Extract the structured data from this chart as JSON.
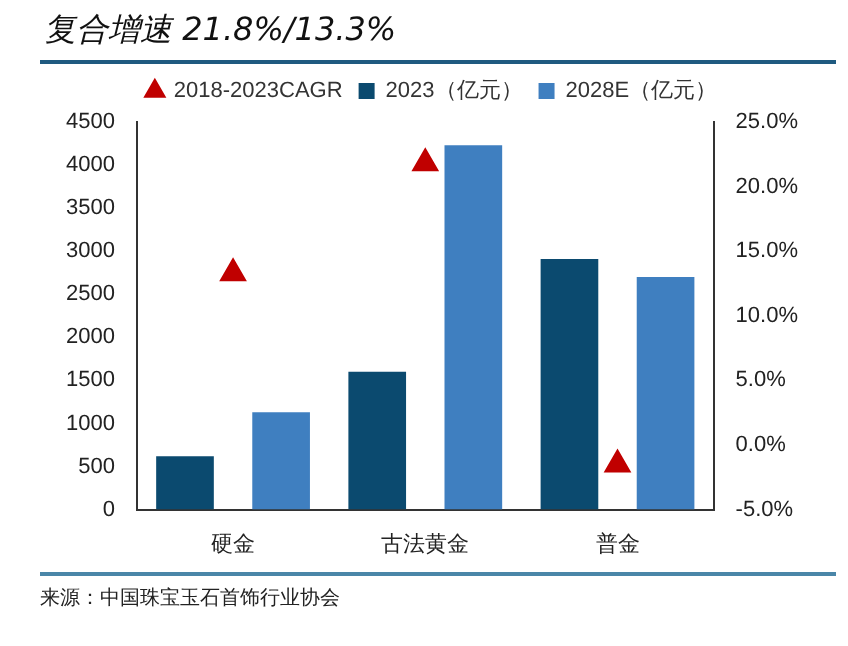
{
  "chart_data": {
    "type": "bar",
    "title": "复合增速 21.8%/13.3%",
    "categories": [
      "硬金",
      "古法黄金",
      "普金"
    ],
    "series": [
      {
        "name": "2023（亿元）",
        "color": "#0b4a6f",
        "values": [
          620,
          1600,
          2910
        ]
      },
      {
        "name": "2028E（亿元）",
        "color": "#3f7fc0",
        "values": [
          1130,
          4230,
          2700
        ]
      },
      {
        "name": "2018-2023CAGR",
        "type": "scatter",
        "marker": "triangle",
        "axis": "y2",
        "color": "#c00000",
        "values": [
          13.3,
          21.8,
          -1.5
        ]
      }
    ],
    "ylim": [
      0,
      4500
    ],
    "yticks": [
      0,
      500,
      1000,
      1500,
      2000,
      2500,
      3000,
      3500,
      4000,
      4500
    ],
    "y2lim": [
      -5,
      25
    ],
    "y2ticks": [
      {
        "value": -5,
        "label": "-5.0%"
      },
      {
        "value": 0,
        "label": "0.0%"
      },
      {
        "value": 5,
        "label": "5.0%"
      },
      {
        "value": 10,
        "label": "10.0%"
      },
      {
        "value": 15,
        "label": "15.0%"
      },
      {
        "value": 20,
        "label": "20.0%"
      },
      {
        "value": 25,
        "label": "25.0%"
      }
    ],
    "grid": false,
    "legend": "top",
    "annotations": [
      "来源：中国珠宝玉石首饰行业协会"
    ]
  }
}
